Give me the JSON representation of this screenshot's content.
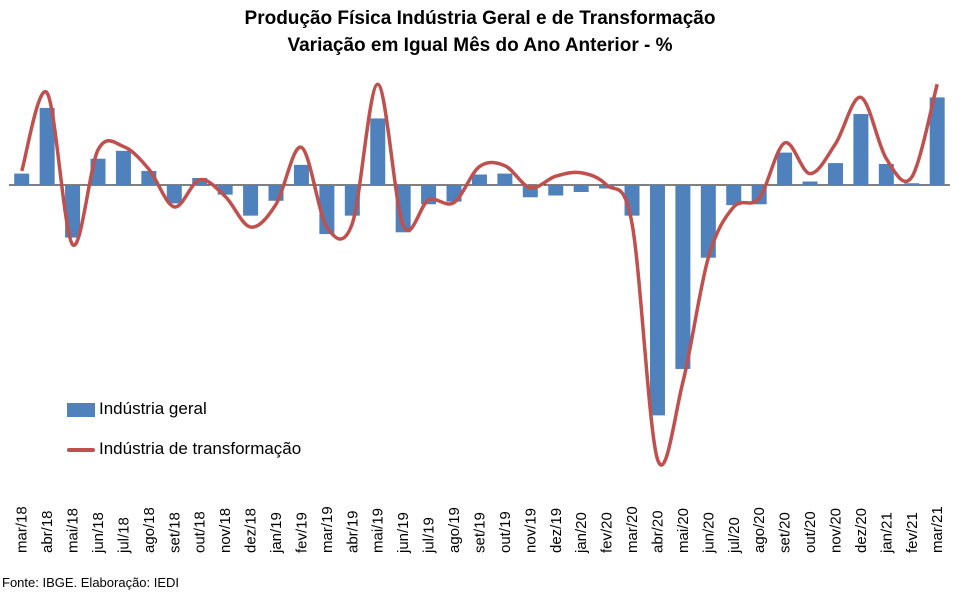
{
  "chart_data": {
    "type": "bar",
    "title": "Produção Física Indústria Geral e de Transformação",
    "subtitle": "Variação em Igual Mês do Ano Anterior - %",
    "categories": [
      "mar/18",
      "abr/18",
      "mai/18",
      "jun/18",
      "jul/18",
      "ago/18",
      "set/18",
      "out/18",
      "nov/18",
      "dez/18",
      "jan/19",
      "fev/19",
      "mar/19",
      "abr/19",
      "mai/19",
      "jun/19",
      "jul/19",
      "ago/19",
      "set/19",
      "out/19",
      "nov/19",
      "dez/19",
      "jan/20",
      "fev/20",
      "mar/20",
      "abr/20",
      "mai/20",
      "jun/20",
      "jul/20",
      "ago/20",
      "set/20",
      "out/20",
      "nov/20",
      "dez/20",
      "jan/21",
      "fev/21",
      "mar/21"
    ],
    "series": [
      {
        "name": "Indústria geral",
        "kind": "bar",
        "color": "#4F81BD",
        "values": [
          1.3,
          8.8,
          -6.0,
          3.0,
          3.9,
          1.6,
          -2.1,
          0.8,
          -1.1,
          -3.5,
          -1.8,
          2.3,
          -5.6,
          -3.5,
          7.6,
          -5.4,
          -2.2,
          -1.9,
          1.2,
          1.3,
          -1.4,
          -1.2,
          -0.8,
          -0.4,
          -3.5,
          -26.3,
          -21.0,
          -8.3,
          -2.3,
          -2.2,
          3.7,
          0.4,
          2.5,
          8.1,
          2.4,
          0.2,
          10.0
        ]
      },
      {
        "name": "Indústria de transformação",
        "kind": "line",
        "color": "#C0504D",
        "values": [
          1.6,
          10.5,
          -6.8,
          4.0,
          4.4,
          1.8,
          -2.5,
          0.6,
          -1.3,
          -4.8,
          -2.2,
          4.3,
          -4.8,
          -4.4,
          11.5,
          -4.6,
          -1.7,
          -2.0,
          2.1,
          2.2,
          -0.3,
          1.0,
          1.4,
          0.0,
          -4.4,
          -31.3,
          -22.5,
          -8.3,
          -2.5,
          -1.5,
          4.8,
          1.3,
          4.7,
          10.0,
          3.0,
          0.9,
          11.5
        ]
      }
    ],
    "legend": "left-middle",
    "grid": false,
    "source": "Fonte: IBGE. Elaboração: IEDI"
  }
}
